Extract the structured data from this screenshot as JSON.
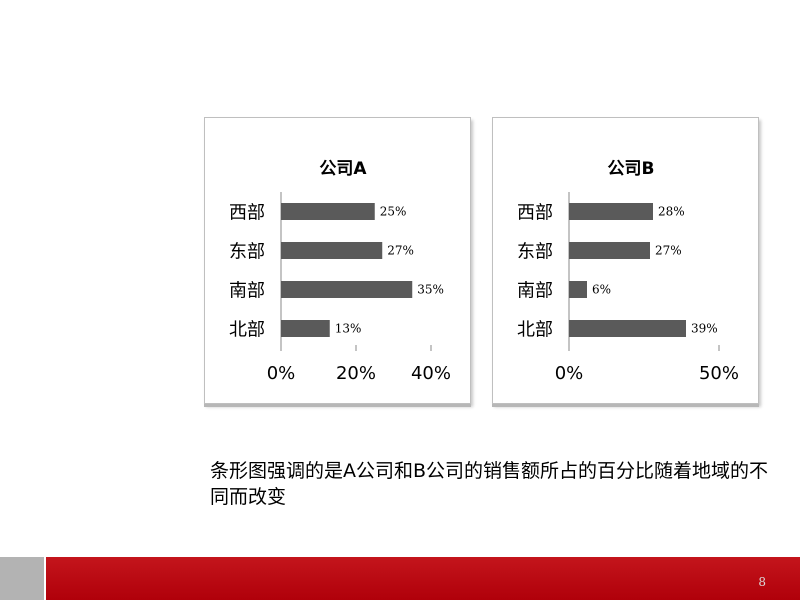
{
  "chart_data": [
    {
      "type": "bar",
      "orientation": "horizontal",
      "title": "公司A",
      "categories": [
        "西部",
        "东部",
        "南部",
        "北部"
      ],
      "values": [
        25,
        27,
        35,
        13
      ],
      "data_labels": [
        "25%",
        "27%",
        "35%",
        "13%"
      ],
      "xlim": [
        0,
        40
      ],
      "xticks": [
        0,
        20,
        40
      ],
      "xtick_labels": [
        "0%",
        "20%",
        "40%"
      ],
      "grid": false,
      "bar_color": "#5a5a5a"
    },
    {
      "type": "bar",
      "orientation": "horizontal",
      "title": "公司B",
      "categories": [
        "西部",
        "东部",
        "南部",
        "北部"
      ],
      "values": [
        28,
        27,
        6,
        39
      ],
      "data_labels": [
        "28%",
        "27%",
        "6%",
        "39%"
      ],
      "xlim": [
        0,
        50
      ],
      "xticks": [
        0,
        50
      ],
      "xtick_labels": [
        "0%",
        "50%"
      ],
      "grid": false,
      "bar_color": "#5a5a5a"
    }
  ],
  "caption": "条形图强调的是A公司和B公司的销售额所占的百分比随着地域的不同而改变",
  "page_number": "8",
  "colors": {
    "footer_red": "#c0000c",
    "footer_gray": "#b3b3b3"
  }
}
